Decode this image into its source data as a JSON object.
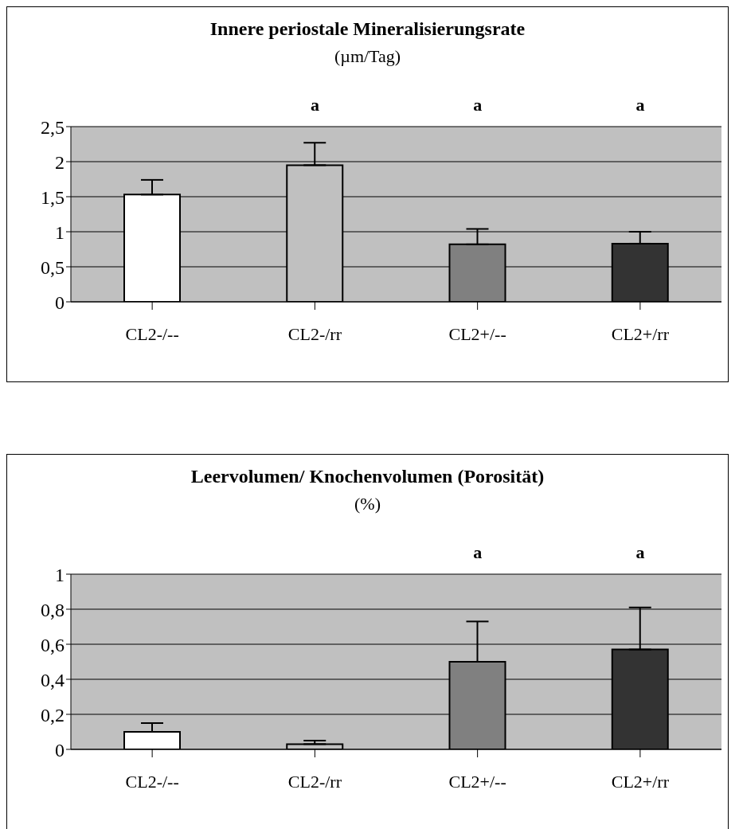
{
  "chart_data": [
    {
      "type": "bar",
      "title": "Innere periostale Mineralisierungsrate",
      "subtitle": "(µm/Tag)",
      "categories": [
        "CL2-/--",
        "CL2-/rr",
        "CL2+/--",
        "CL2+/rr"
      ],
      "values": [
        1.53,
        1.95,
        0.82,
        0.83
      ],
      "colors": [
        "#ffffff",
        "#c0c0c0",
        "#808080",
        "#333333"
      ],
      "errors": [
        [
          1.53,
          1.74
        ],
        [
          1.95,
          2.27
        ],
        [
          0.82,
          1.04
        ],
        [
          0.83,
          1.0
        ]
      ],
      "ylim": [
        0,
        2.5
      ],
      "yticks": [
        0,
        {
          "value": 0.5,
          "label": "0,5"
        },
        1,
        {
          "value": 1.5,
          "label": "1,5"
        },
        2,
        {
          "value": 2.5,
          "label": "2,5"
        }
      ],
      "grid": "y",
      "annotations": [
        "a",
        "a",
        "a"
      ]
    },
    {
      "type": "bar",
      "title": "Leervolumen/ Knochenvolumen (Porosität)",
      "subtitle": "(%)",
      "categories": [
        "CL2-/--",
        "CL2-/rr",
        "CL2+/--",
        "CL2+/rr"
      ],
      "values": [
        0.1,
        0.03,
        0.5,
        0.57
      ],
      "colors": [
        "#ffffff",
        "#c0c0c0",
        "#808080",
        "#333333"
      ],
      "errors": [
        [
          0.1,
          0.15
        ],
        [
          0.03,
          0.05
        ],
        [
          0.5,
          0.73
        ],
        [
          0.57,
          0.81
        ]
      ],
      "ylim": [
        0,
        1
      ],
      "yticks": [
        0,
        {
          "value": 0.2,
          "label": "0,2"
        },
        {
          "value": 0.4,
          "label": "0,4"
        },
        {
          "value": 0.6,
          "label": "0,6"
        },
        {
          "value": 0.8,
          "label": "0,8"
        },
        1
      ],
      "grid": "y",
      "annotations": [
        "a",
        "a"
      ]
    }
  ]
}
